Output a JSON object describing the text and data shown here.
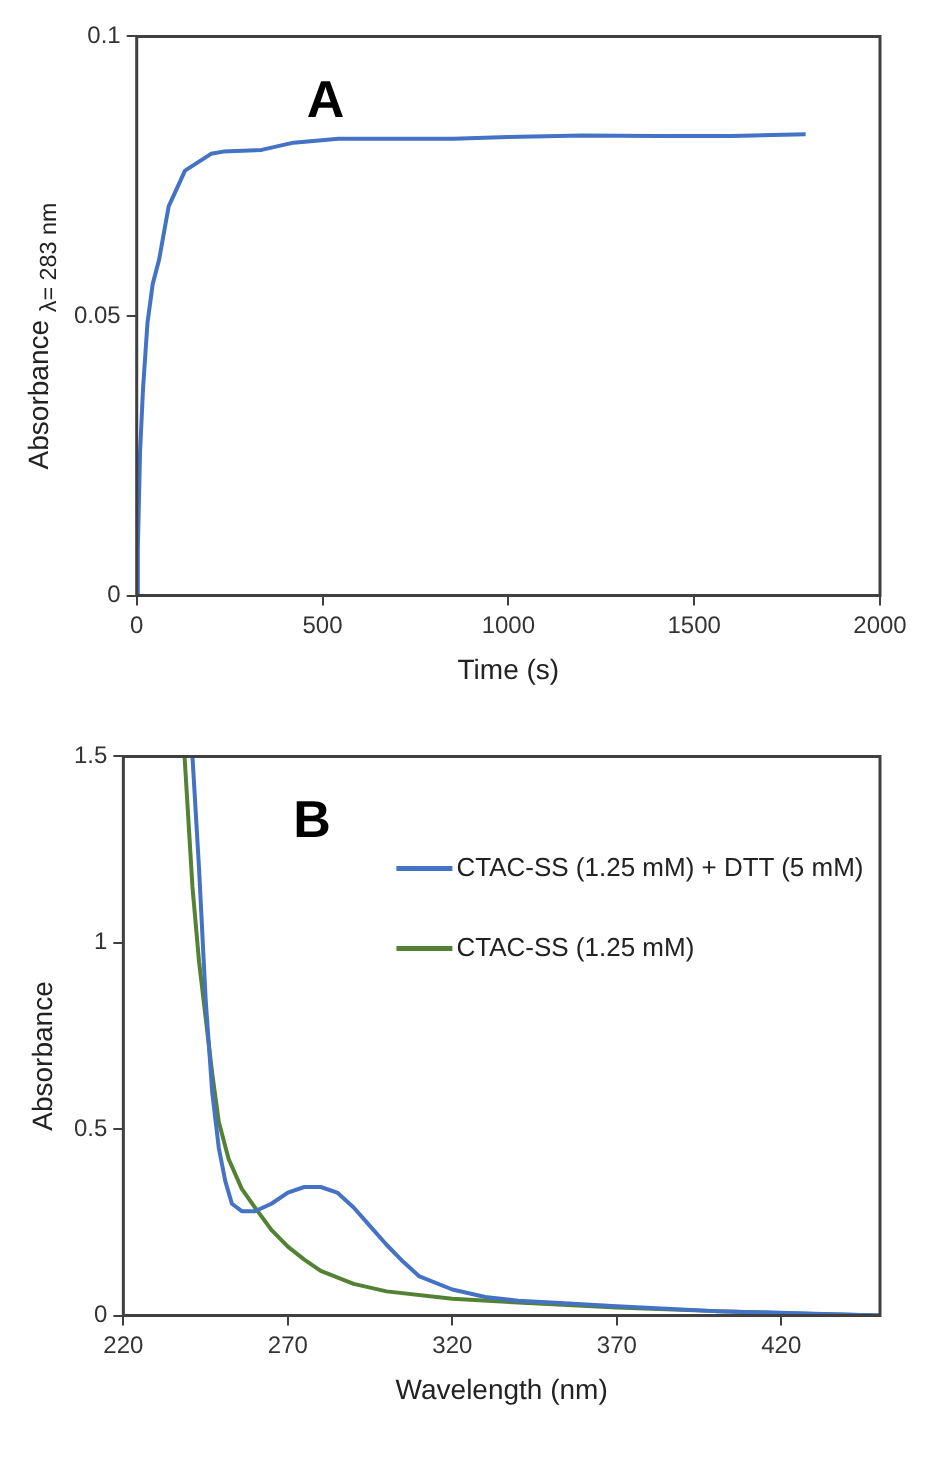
{
  "chart_data": [
    {
      "type": "line",
      "annotations": [
        "A"
      ],
      "xlabel": "Time (s)",
      "ylabel": "Absorbance $_{λ= 283 nm}$",
      "xlim": [
        0,
        2000
      ],
      "xticks": [
        0,
        500,
        1000,
        1500,
        2000
      ],
      "ylim": [
        0,
        0.1
      ],
      "yticks": [
        0,
        0.05,
        0.1
      ],
      "grid": false,
      "legend": false,
      "marker": "none",
      "line_style": "solid",
      "series": [
        {
          "color": "#4472c4",
          "x": [
            0,
            3,
            9,
            17,
            29,
            43,
            60,
            86,
            130,
            200,
            233,
            336,
            422,
            543,
            700,
            853,
            1000,
            1198,
            1400,
            1600,
            1800
          ],
          "values": [
            0,
            0.0083,
            0.0257,
            0.037,
            0.0488,
            0.0557,
            0.06,
            0.0696,
            0.076,
            0.079,
            0.0794,
            0.0797,
            0.081,
            0.0817,
            0.0817,
            0.0817,
            0.082,
            0.0823,
            0.0822,
            0.0822,
            0.0825
          ]
        }
      ]
    },
    {
      "type": "line",
      "annotations": [
        "B"
      ],
      "xlabel": "Wavelength (nm)",
      "ylabel": "Absorbance",
      "xlim": [
        220,
        450
      ],
      "xticks": [
        220,
        270,
        320,
        370,
        420
      ],
      "ylim": [
        0,
        1.5
      ],
      "yticks": [
        0,
        0.5,
        1,
        1.5
      ],
      "grid": false,
      "legend": "top right",
      "marker": "none",
      "line_style": "solid",
      "series": [
        {
          "name": "CTAC-SS (1.25 mM) + DTT (5 mM)",
          "color": "#4472c4",
          "x": [
            241,
            243,
            245,
            247,
            249,
            251,
            253,
            256,
            260,
            265,
            270,
            275,
            280,
            285,
            290,
            295,
            300,
            305,
            310,
            320,
            330,
            340,
            350,
            370,
            400,
            430,
            450
          ],
          "values": [
            1.5,
            1.2,
            0.85,
            0.6,
            0.45,
            0.36,
            0.3,
            0.28,
            0.28,
            0.3,
            0.33,
            0.345,
            0.345,
            0.33,
            0.29,
            0.24,
            0.19,
            0.145,
            0.105,
            0.07,
            0.05,
            0.04,
            0.035,
            0.025,
            0.012,
            0.005,
            0
          ]
        },
        {
          "name": "CTAC-SS (1.25 mM)",
          "color": "#548235",
          "x": [
            238.6,
            241,
            243,
            245,
            247,
            249,
            252,
            256,
            260,
            265,
            270,
            275,
            280,
            290,
            300,
            320,
            340,
            370,
            400,
            430,
            450
          ],
          "values": [
            1.5,
            1.15,
            0.95,
            0.8,
            0.65,
            0.52,
            0.42,
            0.34,
            0.29,
            0.23,
            0.185,
            0.15,
            0.12,
            0.085,
            0.065,
            0.045,
            0.035,
            0.022,
            0.012,
            0.004,
            0
          ]
        }
      ]
    }
  ]
}
